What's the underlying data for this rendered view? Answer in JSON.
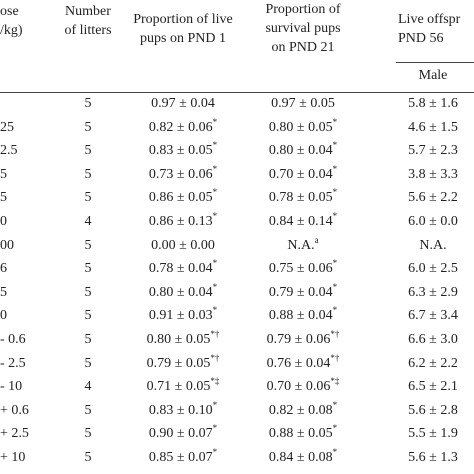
{
  "table": {
    "header": {
      "dose": [
        "ose",
        "/kg)"
      ],
      "litters": [
        "Number",
        "of litters"
      ],
      "pnd1": [
        "Proportion of live",
        "pups on PND 1"
      ],
      "pnd21": [
        "Proportion of",
        "survival pups",
        "on PND 21"
      ],
      "pnd56": [
        "Live offspr",
        "PND 56"
      ],
      "male": "Male"
    },
    "rows": [
      [
        "",
        "5",
        {
          "text": "0.97 ± 0.04"
        },
        {
          "text": "0.97 ± 0.05"
        },
        "5.8 ± 1.6"
      ],
      [
        "25",
        "5",
        {
          "text": "0.82 ± 0.06",
          "sup": "*"
        },
        {
          "text": "0.80 ± 0.05",
          "sup": "*"
        },
        "4.6 ± 1.5"
      ],
      [
        "2.5",
        "5",
        {
          "text": "0.83 ± 0.05",
          "sup": "*"
        },
        {
          "text": "0.80 ± 0.04",
          "sup": "*"
        },
        "5.7 ± 2.3"
      ],
      [
        "5",
        "5",
        {
          "text": "0.73 ± 0.06",
          "sup": "*"
        },
        {
          "text": "0.70 ± 0.04",
          "sup": "*"
        },
        "3.8 ± 3.3"
      ],
      [
        "5",
        "5",
        {
          "text": "0.86 ± 0.05",
          "sup": "*"
        },
        {
          "text": "0.78 ± 0.05",
          "sup": "*"
        },
        "5.6 ± 2.2"
      ],
      [
        "0",
        "4",
        {
          "text": "0.86 ± 0.13",
          "sup": "*"
        },
        {
          "text": "0.84 ± 0.14",
          "sup": "*"
        },
        "6.0 ± 0.0"
      ],
      [
        "00",
        "5",
        {
          "text": "0.00 ± 0.00"
        },
        {
          "text": "N.A.",
          "sup": "a"
        },
        "N.A."
      ],
      [
        "6",
        "5",
        {
          "text": "0.78 ± 0.04",
          "sup": "*"
        },
        {
          "text": "0.75 ± 0.06",
          "sup": "*"
        },
        "6.0 ± 2.5"
      ],
      [
        "5",
        "5",
        {
          "text": "0.80 ± 0.04",
          "sup": "*"
        },
        {
          "text": "0.79 ± 0.04",
          "sup": "*"
        },
        "6.3 ± 2.9"
      ],
      [
        "0",
        "5",
        {
          "text": "0.91 ± 0.03",
          "sup": "*"
        },
        {
          "text": "0.88 ± 0.04",
          "sup": "*"
        },
        "6.7 ± 3.4"
      ],
      [
        "- 0.6",
        "5",
        {
          "text": "0.80 ± 0.05",
          "sup": "*†"
        },
        {
          "text": "0.79 ± 0.06",
          "sup": "*†"
        },
        "6.6 ± 3.0"
      ],
      [
        "- 2.5",
        "5",
        {
          "text": "0.79 ± 0.05",
          "sup": "*†"
        },
        {
          "text": "0.76 ± 0.04",
          "sup": "*†"
        },
        "6.2 ± 2.2"
      ],
      [
        "- 10",
        "4",
        {
          "text": "0.71 ± 0.05",
          "sup": "*‡"
        },
        {
          "text": "0.70 ± 0.06",
          "sup": "*‡"
        },
        "6.5 ± 2.1"
      ],
      [
        "+ 0.6",
        "5",
        {
          "text": "0.83 ± 0.10",
          "sup": "*"
        },
        {
          "text": "0.82 ± 0.08",
          "sup": "*"
        },
        "5.6 ± 2.8"
      ],
      [
        "+ 2.5",
        "5",
        {
          "text": "0.90 ± 0.07",
          "sup": "*"
        },
        {
          "text": "0.88 ± 0.05",
          "sup": "*"
        },
        "5.5 ± 1.9"
      ],
      [
        "+ 10",
        "5",
        {
          "text": "0.85 ± 0.07",
          "sup": "*"
        },
        {
          "text": "0.84 ± 0.08",
          "sup": "*"
        },
        "5.6 ± 1.3"
      ]
    ]
  }
}
